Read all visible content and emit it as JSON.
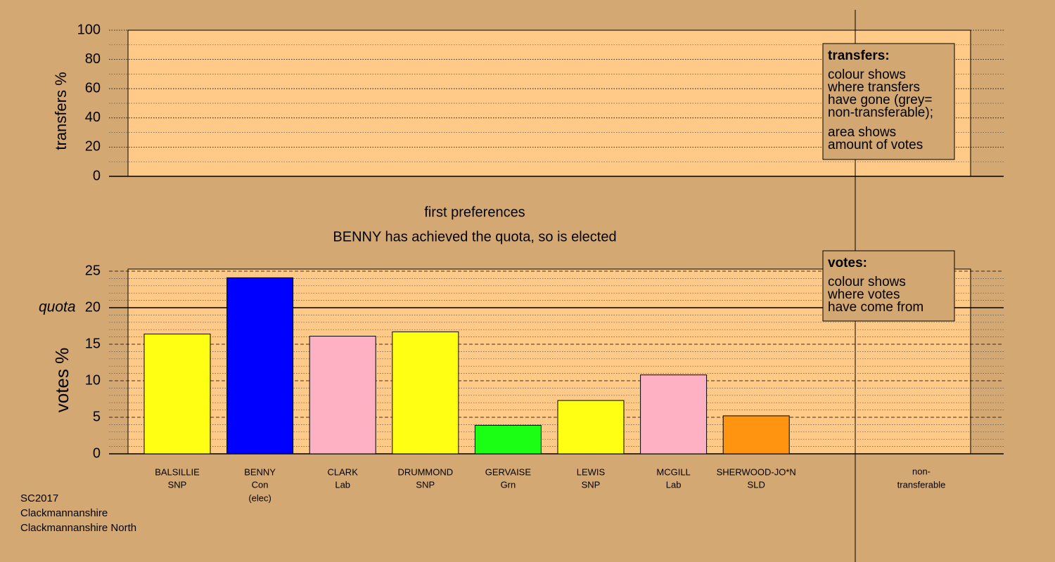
{
  "chart_data": [
    {
      "type": "frame",
      "ylabel": "transfers %",
      "ylim": [
        0,
        100
      ],
      "yticks": [
        0,
        20,
        40,
        60,
        80,
        100
      ],
      "minor_yticks": [
        10,
        30,
        50,
        70,
        90
      ],
      "grid": true,
      "note_title": "transfers:",
      "note_paragraphs": [
        [
          "colour shows",
          "where transfers",
          "have gone (grey=",
          "non-transferable);"
        ],
        [
          "area shows",
          "amount of votes"
        ]
      ]
    },
    {
      "type": "bar",
      "title": "first preferences",
      "subtitle": "BENNY has achieved the quota, so is elected",
      "ylabel": "votes %",
      "ylim": [
        0,
        25
      ],
      "yticks": [
        0,
        5,
        10,
        15,
        20,
        25
      ],
      "minor_yticks": [
        1,
        2,
        3,
        4,
        6,
        7,
        8,
        9,
        11,
        12,
        13,
        14,
        16,
        17,
        18,
        19,
        21,
        22,
        23,
        24
      ],
      "grid": true,
      "quota": 20,
      "quota_label": "quota",
      "categories": [
        "BALSILLIE",
        "BENNY",
        "CLARK",
        "DRUMMOND",
        "GERVAISE",
        "LEWIS",
        "MCGILL",
        "SHERWOOD-JO*N"
      ],
      "parties": [
        "SNP",
        "Con",
        "Lab",
        "SNP",
        "Grn",
        "SNP",
        "Lab",
        "SLD"
      ],
      "notes": [
        null,
        "(elec)",
        null,
        null,
        null,
        null,
        null,
        null
      ],
      "values": [
        16.4,
        24.1,
        16.1,
        16.7,
        3.9,
        7.3,
        10.8,
        5.2
      ],
      "colors": [
        "#ffff14",
        "#0000ff",
        "#ffb1c4",
        "#ffff14",
        "#1aff14",
        "#ffff14",
        "#ffb1c4",
        "#ff9410"
      ],
      "nontransferable_label": [
        "non-",
        "transferable"
      ],
      "note_title": "votes:",
      "note_paragraphs": [
        [
          "colour shows",
          "where votes",
          "have come from"
        ]
      ]
    }
  ],
  "footer": [
    "SC2017",
    "Clackmannanshire",
    "Clackmannanshire North"
  ]
}
